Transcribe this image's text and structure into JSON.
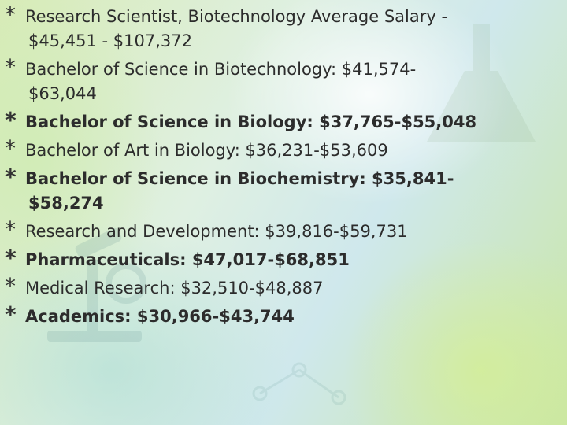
{
  "slide": {
    "bullet_char": "*",
    "items": [
      {
        "line1": "Research Scientist, Biotechnology Average Salary -",
        "line2": "$45,451 - $107,372",
        "bold": false
      },
      {
        "line1": "Bachelor of Science in Biotechnology: $41,574-",
        "line2": "$63,044",
        "bold": false
      },
      {
        "line1": "Bachelor of Science in Biology: $37,765-$55,048",
        "line2": "",
        "bold": true
      },
      {
        "line1": "Bachelor of Art in Biology: $36,231-$53,609",
        "line2": "",
        "bold": false
      },
      {
        "line1": "Bachelor of Science in Biochemistry: $35,841-",
        "line2": "$58,274",
        "bold": true
      },
      {
        "line1": "Research and Development: $39,816-$59,731",
        "line2": "",
        "bold": false
      },
      {
        "line1": "Pharmaceuticals: $47,017-$68,851",
        "line2": "",
        "bold": true
      },
      {
        "line1": "Medical Research: $32,510-$48,887",
        "line2": "",
        "bold": false
      },
      {
        "line1": "Academics: $30,966-$43,744",
        "line2": "",
        "bold": true
      }
    ]
  },
  "background": {
    "colors": [
      "#d8ebb7",
      "#dff0e2",
      "#cfe8ec",
      "#c9e6a4"
    ],
    "decoration_icons": [
      "microscope-icon",
      "flask-icon"
    ]
  }
}
